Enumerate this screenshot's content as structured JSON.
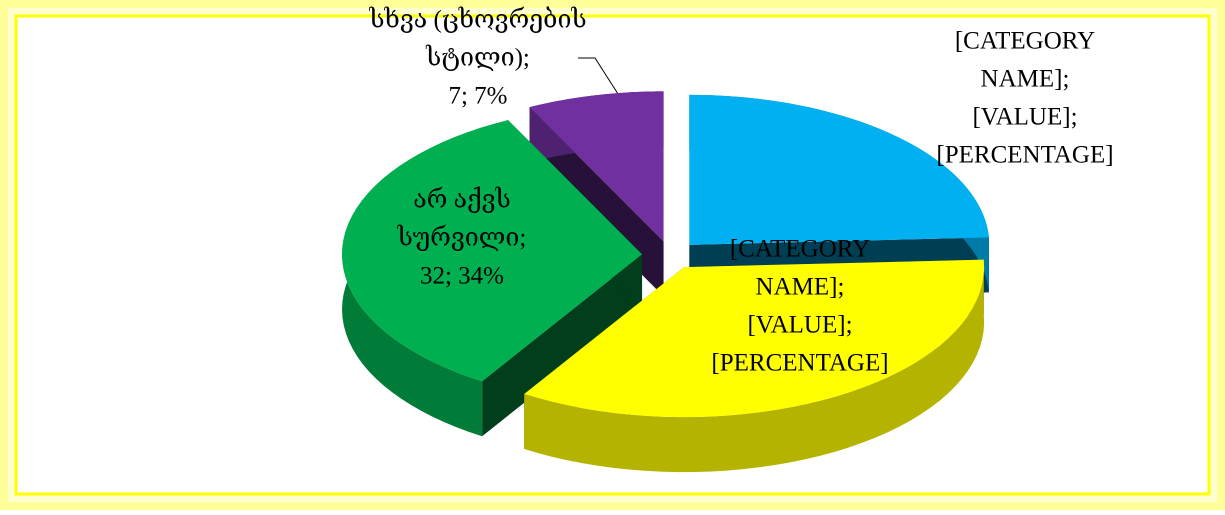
{
  "chart_data": {
    "type": "pie",
    "values": [
      23,
      33,
      32,
      7
    ],
    "colors": [
      "#00b0f0",
      "#ffff00",
      "#00b050",
      "#7030a0"
    ],
    "value_labels": [
      [
        "[CATEGORY",
        "NAME];",
        "[VALUE];",
        "[PERCENTAGE]"
      ],
      [
        "[CATEGORY",
        "NAME];",
        "[VALUE];",
        "[PERCENTAGE]"
      ],
      [
        "არ აქვს",
        "სურვილი;",
        "32; 34%"
      ],
      [
        "სხვა (ცხოვრების",
        "სტილი);",
        "7; 7%"
      ]
    ],
    "exploded": true,
    "three_d": true
  }
}
